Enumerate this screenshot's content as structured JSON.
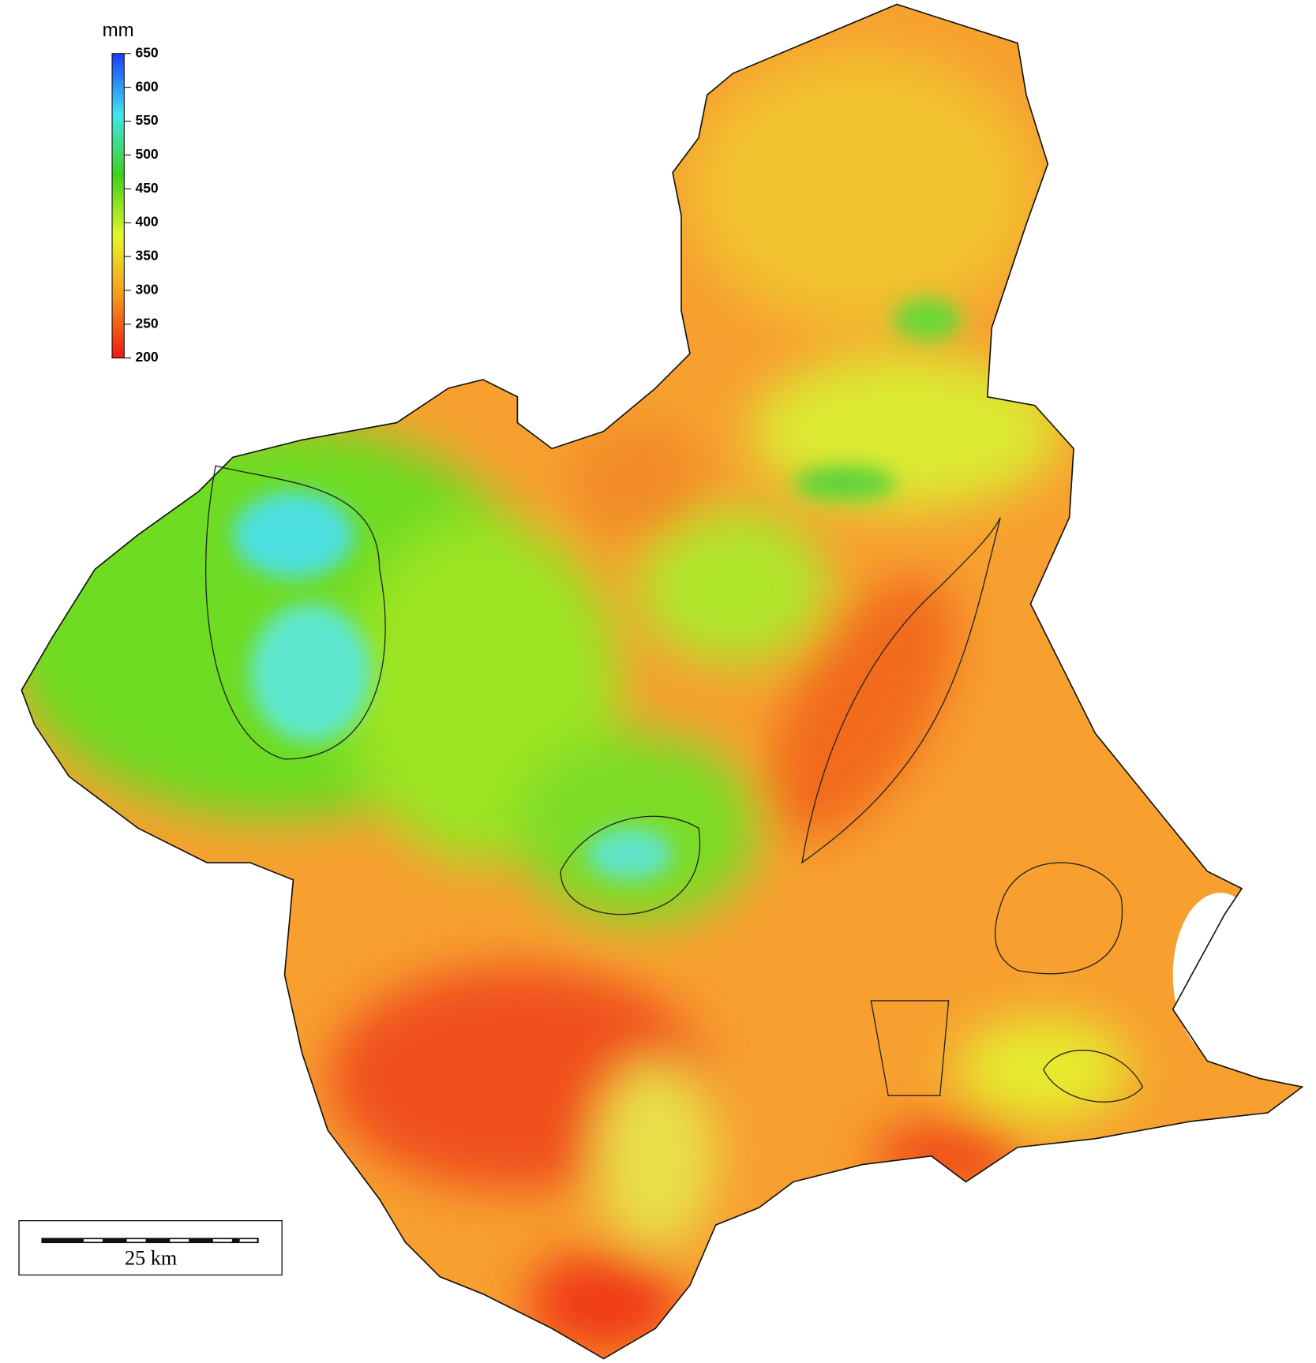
{
  "legend": {
    "unit": "mm",
    "range": [
      200,
      650
    ],
    "ticks": [
      650,
      600,
      550,
      500,
      450,
      400,
      350,
      300,
      250,
      200
    ]
  },
  "scale_bar": {
    "label": "25 km"
  }
}
